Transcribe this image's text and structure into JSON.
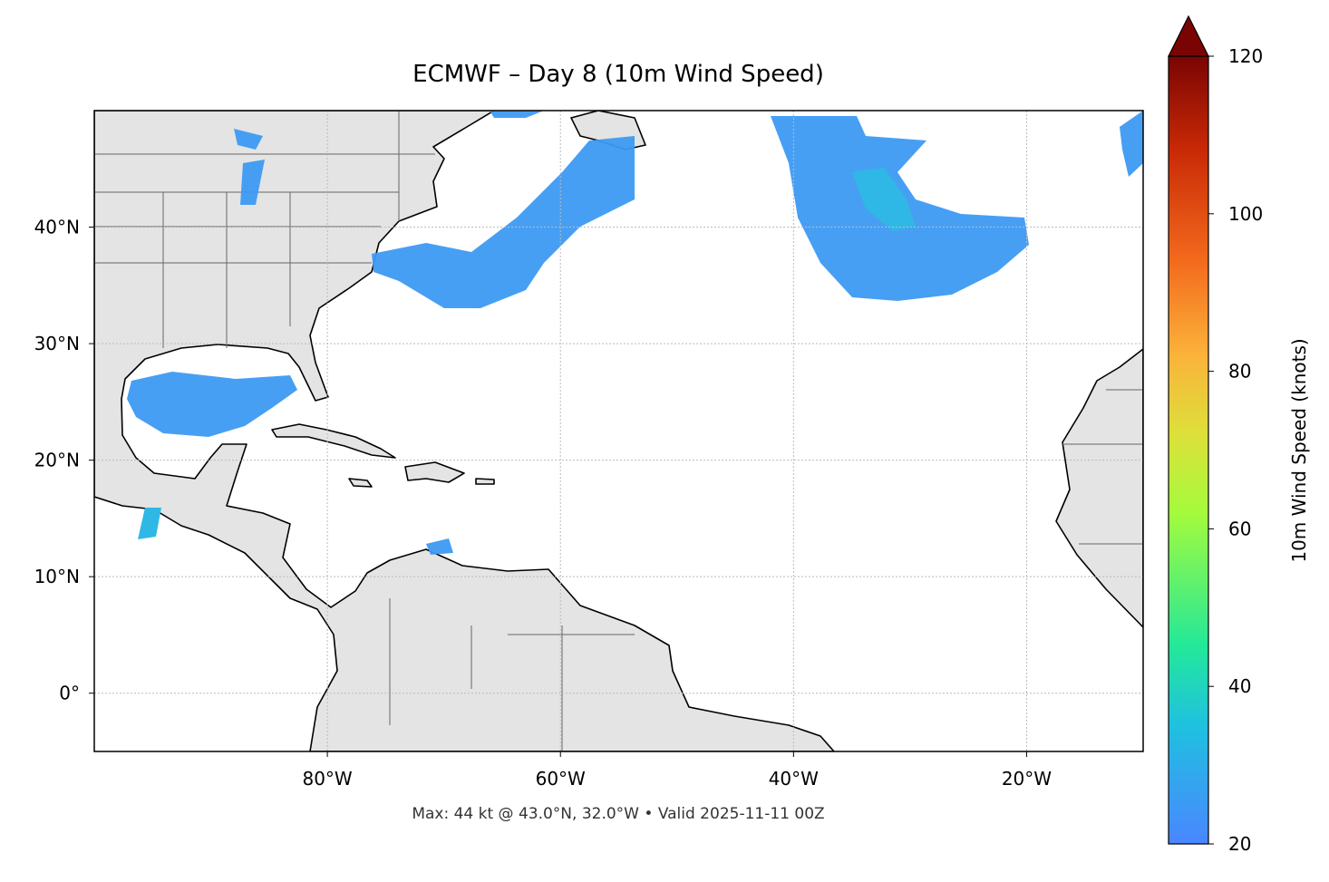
{
  "chart_data": {
    "type": "map",
    "title": "ECMWF – Day 8 (10m Wind Speed)",
    "footer": "Max: 44 kt @ 43.0°N, 32.0°W • Valid 2025-11-11 00Z",
    "xlim": [
      -100,
      -10
    ],
    "ylim": [
      -5,
      50
    ],
    "xticks": [
      {
        "value": -80,
        "label": "80°W"
      },
      {
        "value": -60,
        "label": "60°W"
      },
      {
        "value": -40,
        "label": "40°W"
      },
      {
        "value": -20,
        "label": "20°W"
      }
    ],
    "yticks": [
      {
        "value": 0,
        "label": "0°"
      },
      {
        "value": 10,
        "label": "10°N"
      },
      {
        "value": 20,
        "label": "20°N"
      },
      {
        "value": 30,
        "label": "30°N"
      },
      {
        "value": 40,
        "label": "40°N"
      }
    ],
    "grid": true,
    "colorbar": {
      "label": "10m Wind Speed (knots)",
      "lim": [
        20,
        120
      ],
      "ticks": [
        20,
        40,
        60,
        80,
        100,
        120
      ]
    }
  }
}
